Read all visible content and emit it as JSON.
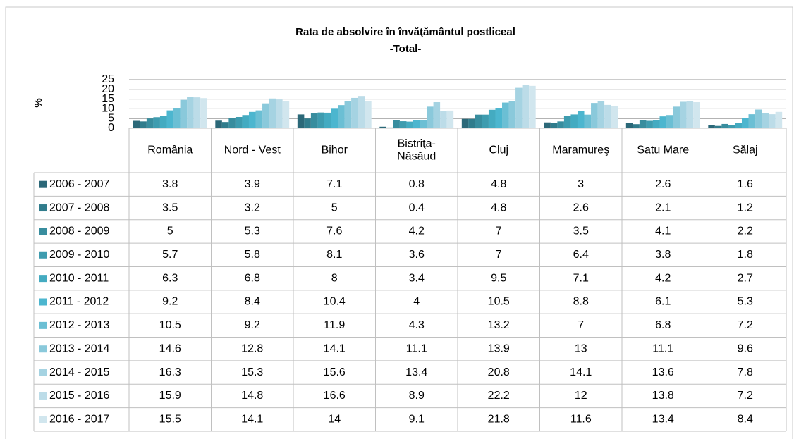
{
  "chart_data": {
    "type": "bar",
    "title": "Rata de absolvire în învăţământul postliceal",
    "subtitle": "-Total-",
    "y_label": "%",
    "categories": [
      "România",
      "Nord - Vest",
      "Bihor",
      "Bistriţa-\nNăsăud",
      "Cluj",
      "Maramureş",
      "Satu Mare",
      "Sălaj"
    ],
    "ylim": [
      0,
      25
    ],
    "yticks": [
      0,
      5,
      10,
      15,
      20,
      25
    ],
    "grid": true,
    "series": [
      {
        "name": "2006 - 2007",
        "color": "#2b6878",
        "values": [
          3.8,
          3.9,
          7.1,
          0.8,
          4.8,
          3,
          2.6,
          1.6
        ]
      },
      {
        "name": "2007 - 2008",
        "color": "#307c8c",
        "values": [
          3.5,
          3.2,
          5,
          0.4,
          4.8,
          2.6,
          2.1,
          1.2
        ]
      },
      {
        "name": "2008 - 2009",
        "color": "#388d9e",
        "values": [
          5,
          5.3,
          7.6,
          4.2,
          7,
          3.5,
          4.1,
          2.2
        ]
      },
      {
        "name": "2009 - 2010",
        "color": "#3e9caf",
        "values": [
          5.7,
          5.8,
          8.1,
          3.6,
          7,
          6.4,
          3.8,
          1.8
        ]
      },
      {
        "name": "2010 - 2011",
        "color": "#44abc1",
        "values": [
          6.3,
          6.8,
          8,
          3.4,
          9.5,
          7.1,
          4.2,
          2.7
        ]
      },
      {
        "name": "2011 - 2012",
        "color": "#4cb6cf",
        "values": [
          9.2,
          8.4,
          10.4,
          4,
          10.5,
          8.8,
          6.1,
          5.3
        ]
      },
      {
        "name": "2012 - 2013",
        "color": "#6bbfd4",
        "values": [
          10.5,
          9.2,
          11.9,
          4.3,
          13.2,
          7,
          6.8,
          7.2
        ]
      },
      {
        "name": "2013 - 2014",
        "color": "#8ac9db",
        "values": [
          14.6,
          12.8,
          14.1,
          11.1,
          13.9,
          13,
          11.1,
          9.6
        ]
      },
      {
        "name": "2014 - 2015",
        "color": "#a5d3e2",
        "values": [
          16.3,
          15.3,
          15.6,
          13.4,
          20.8,
          14.1,
          13.6,
          7.8
        ]
      },
      {
        "name": "2015 - 2016",
        "color": "#bcdce8",
        "values": [
          15.9,
          14.8,
          16.6,
          8.9,
          22.2,
          12,
          13.8,
          7.2
        ]
      },
      {
        "name": "2016 - 2017",
        "color": "#d1e6ee",
        "values": [
          15.5,
          14.1,
          14,
          9.1,
          21.8,
          11.6,
          13.4,
          8.4
        ]
      }
    ]
  }
}
